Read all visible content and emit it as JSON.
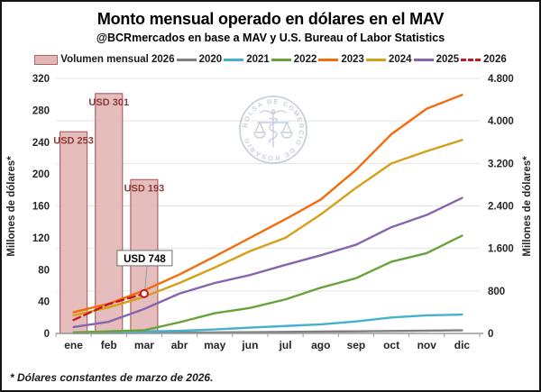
{
  "title": "Monto mensual operado en dólares en el MAV",
  "subtitle": "@BCRmercados en base a MAV y U.S. Bureau of Labor Statistics",
  "footnote": "* Dólares constantes de marzo de 2026.",
  "watermark_text": "BOLSA DE COMERCIO DE ROSARIO",
  "axes": {
    "left_label": "Millones de dólares*",
    "right_label": "Millones de dólares*",
    "left_ticks": [
      0,
      40,
      80,
      120,
      160,
      200,
      240,
      280,
      320
    ],
    "right_ticks": [
      {
        "v": 0,
        "label": "0"
      },
      {
        "v": 800,
        "label": "800"
      },
      {
        "v": 1600,
        "label": "1.600"
      },
      {
        "v": 2400,
        "label": "2.400"
      },
      {
        "v": 3200,
        "label": "3.200"
      },
      {
        "v": 4000,
        "label": "4.000"
      },
      {
        "v": 4800,
        "label": "4.800"
      }
    ]
  },
  "chart_data": {
    "type": "bar+line",
    "title": "Monto mensual operado en dólares en el MAV",
    "categories": [
      "ene",
      "feb",
      "mar",
      "abr",
      "may",
      "jun",
      "jul",
      "ago",
      "sep",
      "oct",
      "nov",
      "dic"
    ],
    "left_axis": {
      "label": "Millones de dólares*",
      "range": [
        0,
        320
      ],
      "step": 40
    },
    "right_axis": {
      "label": "Millones de dólares*",
      "range": [
        0,
        4800
      ],
      "step": 800
    },
    "grid": "horizontal, every 800 of right axis",
    "legend_position": "top",
    "bars": {
      "name": "Volumen mensual 2026",
      "axis": "left",
      "values": [
        253,
        301,
        193
      ],
      "labels": [
        "USD 253",
        "USD 301",
        "USD 193"
      ],
      "fill": "#E3B7B6",
      "stroke": "#AD6664",
      "label_color": "#8E3B38"
    },
    "series": [
      {
        "name": "2020",
        "color": "#7F7F7F",
        "axis": "right",
        "values": [
          5,
          8,
          12,
          15,
          18,
          22,
          28,
          35,
          40,
          45,
          52,
          58
        ]
      },
      {
        "name": "2021",
        "color": "#45B1CE",
        "axis": "right",
        "values": [
          10,
          20,
          35,
          50,
          75,
          110,
          140,
          170,
          225,
          300,
          340,
          355
        ]
      },
      {
        "name": "2022",
        "color": "#69A23A",
        "axis": "right",
        "values": [
          20,
          40,
          60,
          210,
          380,
          480,
          640,
          860,
          1040,
          1350,
          1510,
          1840
        ]
      },
      {
        "name": "2023",
        "color": "#F56B0A",
        "axis": "right",
        "values": [
          400,
          560,
          810,
          1110,
          1450,
          1800,
          2150,
          2520,
          3080,
          3750,
          4230,
          4490
        ]
      },
      {
        "name": "2024",
        "color": "#D5A017",
        "axis": "right",
        "values": [
          340,
          490,
          690,
          950,
          1240,
          1550,
          1800,
          2240,
          2740,
          3200,
          3430,
          3640
        ]
      },
      {
        "name": "2025",
        "color": "#8566AE",
        "axis": "right",
        "values": [
          120,
          220,
          460,
          750,
          950,
          1100,
          1290,
          1470,
          1670,
          2000,
          2230,
          2550
        ]
      },
      {
        "name": "2026",
        "color": "#C9161D",
        "axis": "right",
        "dashed": true,
        "marker_last": true,
        "values": [
          253,
          554,
          748
        ]
      }
    ],
    "annotation": {
      "label": "USD 748",
      "series": "2026",
      "month_index": 2,
      "value": 748
    }
  }
}
